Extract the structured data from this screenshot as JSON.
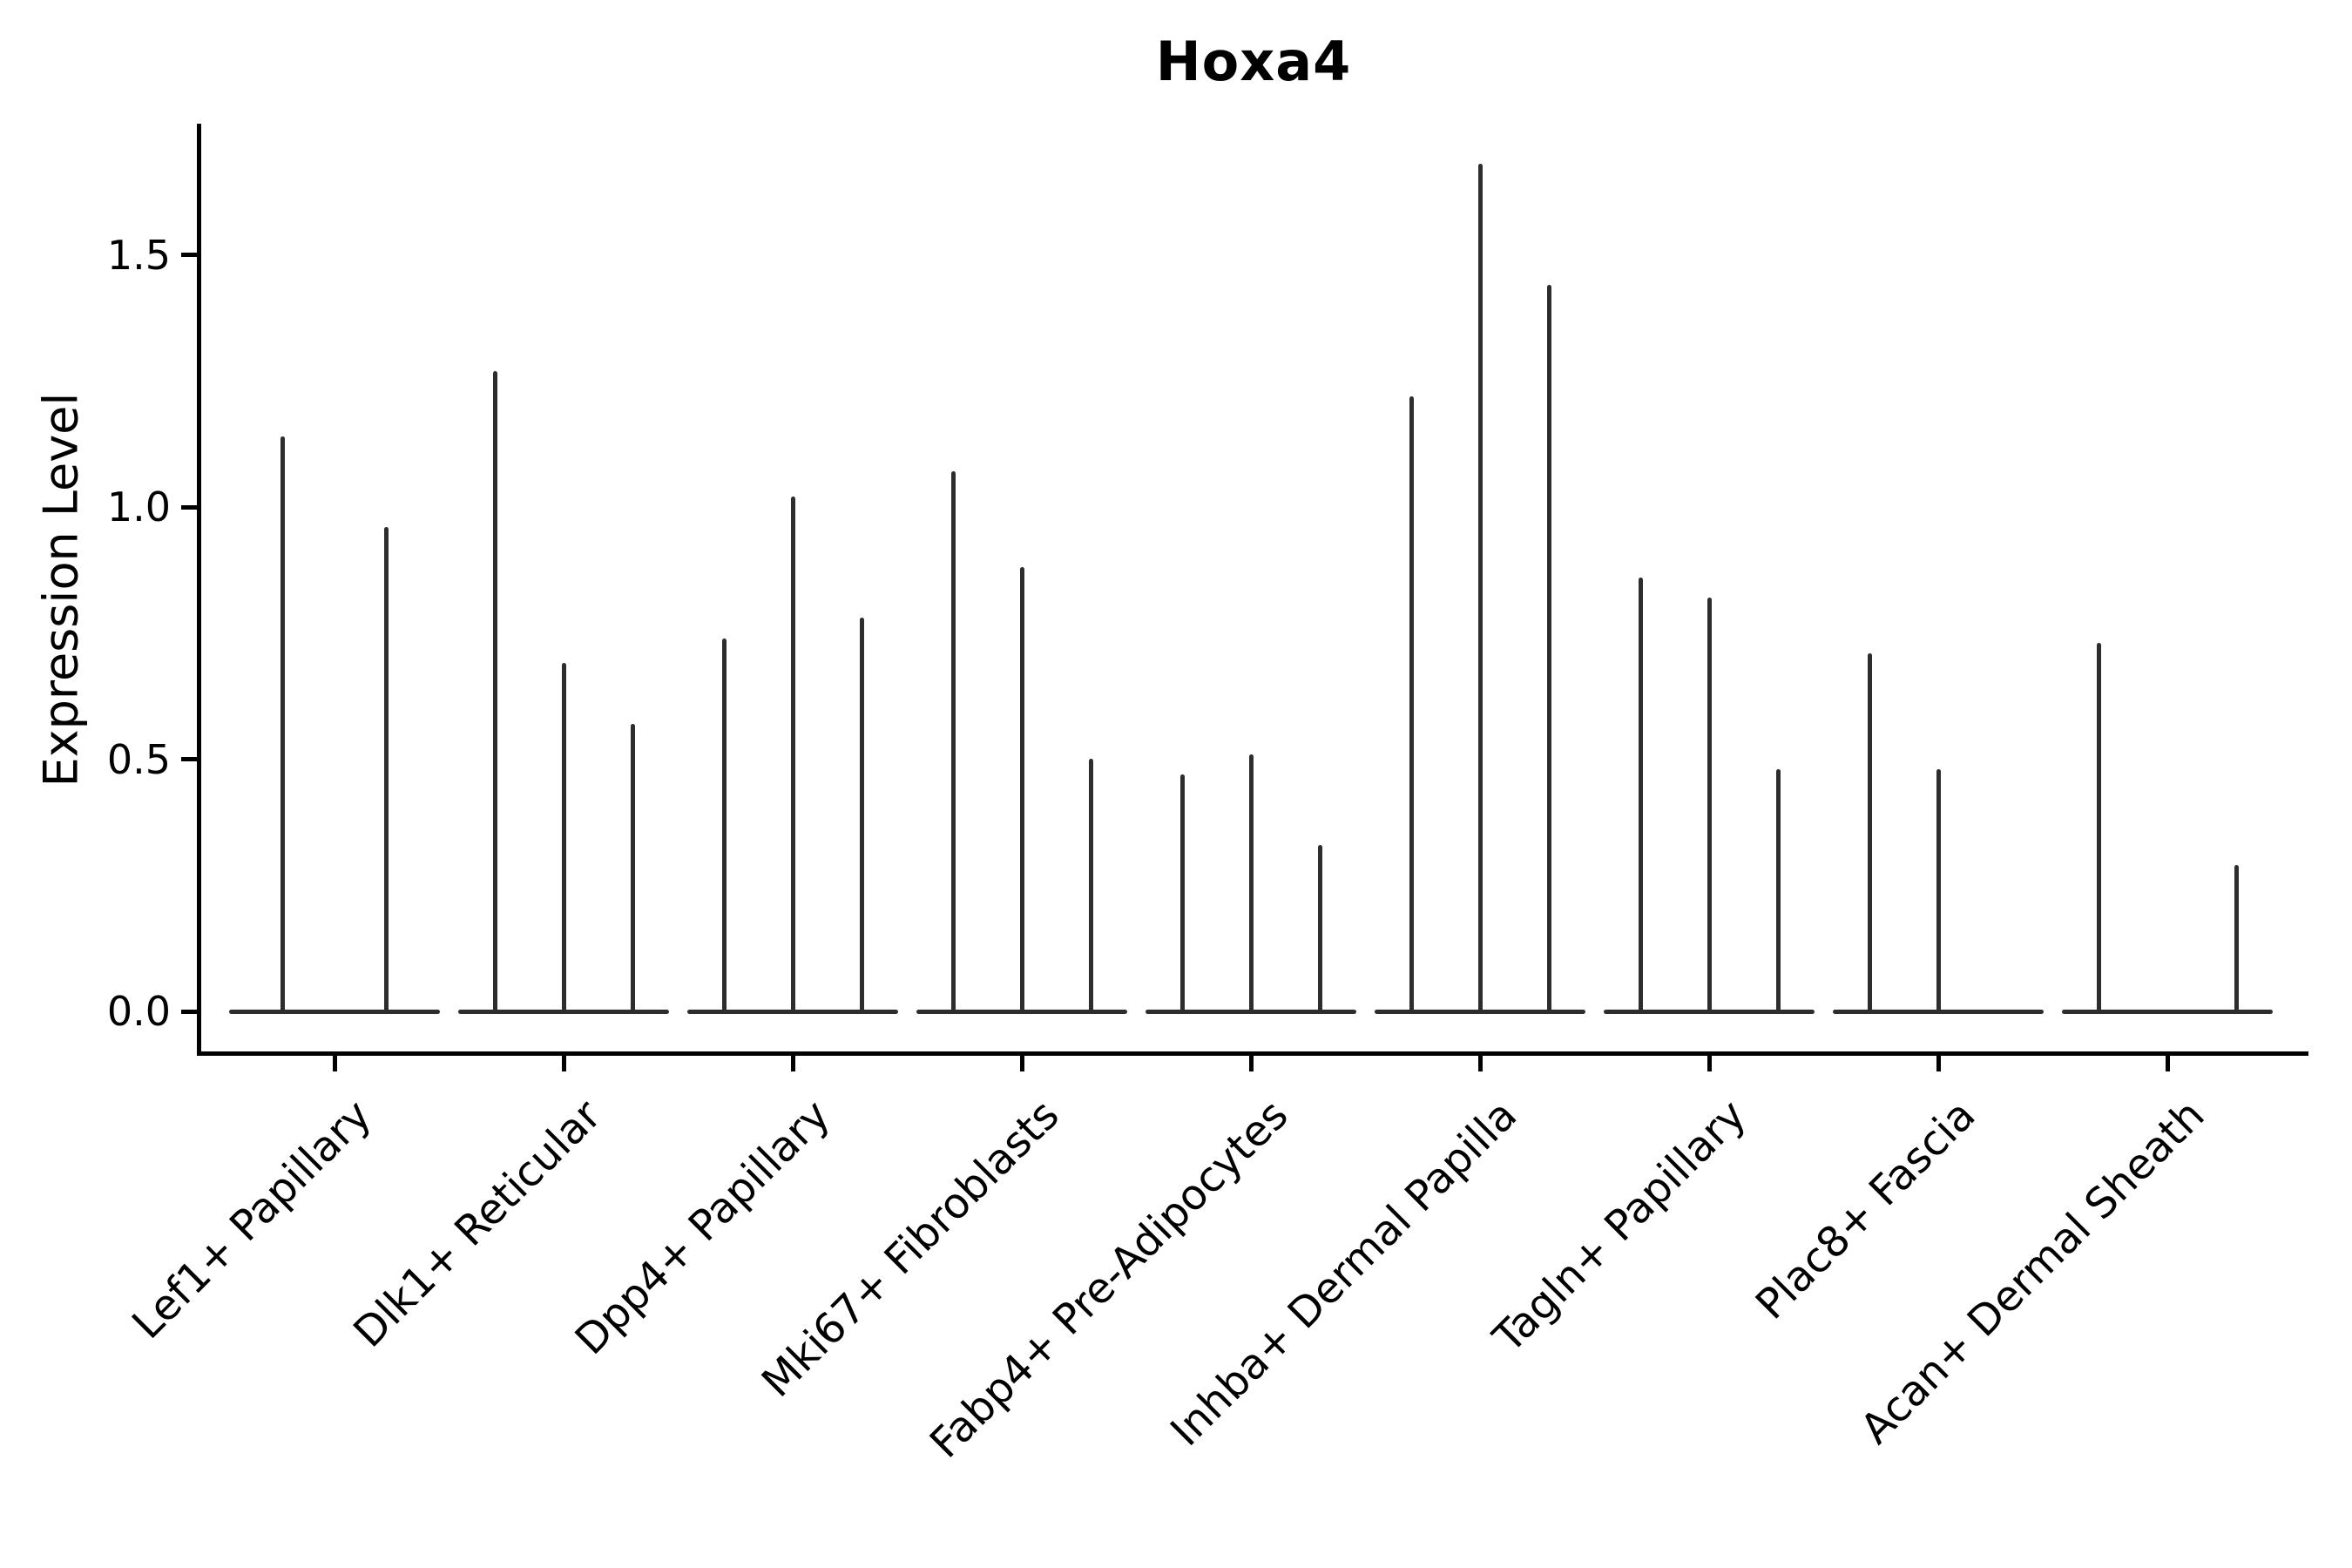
{
  "chart_data": {
    "type": "violin",
    "title": "Hoxa4",
    "ylabel": "Expression Level",
    "xlabel": "",
    "grid": false,
    "legend_position": "none",
    "background_color": "#ffffff",
    "violin_color": "#2d2d2d",
    "axis_color": "#000000",
    "ytick_labels": [
      "0.0",
      "0.5",
      "1.0",
      "1.5"
    ],
    "ytick_values": [
      0.0,
      0.5,
      1.0,
      1.5
    ],
    "ylim": [
      -0.085,
      1.76
    ],
    "categories": [
      "Lef1+ Papillary",
      "Dlk1+ Reticular",
      "Dpp4+ Papillary",
      "Mki67+ Fibroblasts",
      "Fabp4+ Pre-Adipocytes",
      "Inhba+ Dermal Papilla",
      "Tagln+ Papillary",
      "Plac8+ Fascia",
      "Acan+ Dermal Sheath"
    ],
    "series": [
      {
        "category": "Lef1+ Papillary",
        "violin_peaks": [
          1.14,
          0.96
        ]
      },
      {
        "category": "Dlk1+ Reticular",
        "violin_peaks": [
          1.27,
          0.69,
          0.57
        ]
      },
      {
        "category": "Dpp4+ Papillary",
        "violin_peaks": [
          0.74,
          1.02,
          0.78
        ]
      },
      {
        "category": "Mki67+ Fibroblasts",
        "violin_peaks": [
          1.07,
          0.88,
          0.5
        ]
      },
      {
        "category": "Fabp4+ Pre-Adipocytes",
        "violin_peaks": [
          0.47,
          0.51,
          0.33
        ]
      },
      {
        "category": "Inhba+ Dermal Papilla",
        "violin_peaks": [
          1.22,
          1.68,
          1.44
        ]
      },
      {
        "category": "Tagln+ Papillary",
        "violin_peaks": [
          0.86,
          0.82,
          0.48
        ]
      },
      {
        "category": "Plac8+ Fascia",
        "violin_peaks": [
          0.71,
          0.48,
          0.0
        ]
      },
      {
        "category": "Acan+ Dermal Sheath",
        "violin_peaks": [
          0.73,
          0.0,
          0.29
        ]
      }
    ]
  }
}
